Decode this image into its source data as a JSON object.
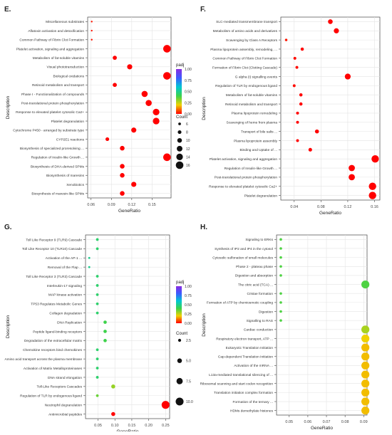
{
  "chart_data": [
    {
      "panel": "E.",
      "type": "scatter",
      "xlabel": "GeneRatio",
      "ylabel": "Description",
      "xlim": [
        0.055,
        0.178
      ],
      "xticks": [
        0.06,
        0.09,
        0.12,
        0.15
      ],
      "xtick_labels": [
        "0.06",
        "0.09",
        "0.12",
        "0.15"
      ],
      "color_legend_title": "padj",
      "color_ticks": [
        "1.00",
        "0.75",
        "0.50",
        "0.25",
        "0.00"
      ],
      "size_legend_title": "Count",
      "size_ticks": [
        6,
        8,
        10,
        12,
        14,
        16
      ],
      "size_domain": [
        4,
        18
      ],
      "categories": [
        "Miscellaneous substrates",
        "Aflatoxin activation and detoxification",
        "Common Pathway of Fibrin Clot Formation",
        "Platelet activation, signaling and aggregation",
        "Metabolism of fat-soluble vitamins",
        "Visual phototransduction",
        "Biological oxidations",
        "Retinoid metabolism and transport",
        "Phase I - Functionalization of compounds",
        "Post-translational protein phosphorylation",
        "Response to elevated platelet cytosolic Ca2+",
        "Platelet degranulation",
        "Cytochrome P450 - arranged by substrate type",
        "CYP2E1 reactions",
        "Biosynthesis of specialized proresolving ...",
        "Regulation of Insulin-like Growth ...",
        "Biosynthesis of DHA-derived SPMs",
        "Biosynthesis of maresins",
        "Xenobiotics",
        "Biosynthesis of maresin-like SPMs"
      ],
      "x": [
        0.061,
        0.061,
        0.061,
        0.172,
        0.095,
        0.117,
        0.172,
        0.095,
        0.139,
        0.145,
        0.156,
        0.156,
        0.123,
        0.084,
        0.106,
        0.172,
        0.106,
        0.106,
        0.123,
        0.106
      ],
      "count": [
        4,
        4,
        4,
        16,
        9,
        11,
        16,
        9,
        13,
        13,
        14,
        14,
        11,
        8,
        10,
        16,
        10,
        10,
        11,
        10
      ],
      "padj": [
        0.02,
        0.02,
        0.02,
        0.0,
        0.0,
        0.0,
        0.0,
        0.0,
        0.0,
        0.0,
        0.0,
        0.0,
        0.0,
        0.0,
        0.0,
        0.0,
        0.0,
        0.0,
        0.0,
        0.0
      ]
    },
    {
      "panel": "F.",
      "type": "scatter",
      "xlabel": "GeneRatio",
      "ylabel": "Description",
      "xlim": [
        0.02,
        0.168
      ],
      "xticks": [
        0.04,
        0.08,
        0.12,
        0.16
      ],
      "xtick_labels": [
        "0.04",
        "0.08",
        "0.12",
        "0.16"
      ],
      "color_legend_title": "padj",
      "color_ticks": [
        "1.00",
        "0.75",
        "0.50",
        "0.25",
        "0.00"
      ],
      "size_legend_title": "Count",
      "size_ticks": [
        3,
        6,
        9,
        12,
        15,
        18
      ],
      "size_domain": [
        1,
        19
      ],
      "categories": [
        "SLC-mediated transmembrane transport",
        "Metabolism of amino acids and derivatives",
        "Scavenging by Class A Receptors",
        "Plasma lipoprotein assembly, remodeling, ...",
        "Common Pathway of Fibrin Clot Formation",
        "Formation of Fibrin Clot (Clotting Cascade)",
        "G alpha (i) signalling events",
        "Regulation of TLR by endogenous ligand",
        "Metabolism of fat-soluble vitamins",
        "Retinoid metabolism and transport",
        "Plasma lipoprotein remodeling",
        "Scavenging of heme from plasma",
        "Transport of bile salts ...",
        "Plasma lipoprotein assembly",
        "Binding and Uptake of ...",
        "Platelet activation, signaling and aggregation",
        "Regulation of Insulin-like Growth ...",
        "Post-translational protein phosphorylation",
        "Response to elevated platelet cytosolic Ca2+",
        "Platelet degranulation"
      ],
      "x": [
        0.094,
        0.103,
        0.028,
        0.052,
        0.041,
        0.044,
        0.12,
        0.04,
        0.05,
        0.05,
        0.045,
        0.045,
        0.074,
        0.045,
        0.064,
        0.161,
        0.126,
        0.126,
        0.157,
        0.157
      ],
      "count": [
        9,
        10,
        3,
        5,
        4,
        4,
        12,
        4,
        5,
        5,
        4,
        4,
        7,
        4,
        6,
        16,
        13,
        13,
        16,
        16
      ],
      "padj": [
        0.0,
        0.0,
        0.02,
        0.0,
        0.01,
        0.01,
        0.0,
        0.01,
        0.0,
        0.0,
        0.0,
        0.0,
        0.0,
        0.0,
        0.0,
        0.0,
        0.0,
        0.0,
        0.0,
        0.0
      ]
    },
    {
      "panel": "G.",
      "type": "scatter",
      "xlabel": "GeneRatio",
      "ylabel": "Description",
      "xlim": [
        0.013,
        0.262
      ],
      "xticks": [
        0.05,
        0.1,
        0.15,
        0.2,
        0.25
      ],
      "xtick_labels": [
        "0.05",
        "0.10",
        "0.15",
        "0.20",
        "0.25"
      ],
      "color_legend_title": "padj",
      "color_ticks": [
        "1.00",
        "0.75",
        "0.50",
        "0.25",
        "0.00"
      ],
      "size_legend_title": "Count",
      "size_ticks": [
        2.5,
        5.0,
        7.5,
        10.0
      ],
      "size_tick_labels": [
        "2.5",
        "5.0",
        "7.5",
        "10.0"
      ],
      "size_domain": [
        0.5,
        11
      ],
      "categories": [
        "Toll Like Receptor 9 (TLR9) Cascade",
        "Toll Like Receptor 10 (TLR10) Cascade",
        "Activation of the AP-1 ...",
        "Removal of the Flap ...",
        "Toll Like Receptor 3 (TLR3) Cascade",
        "Interleukin-17 signaling",
        "MAP kinase activation",
        "TP53 Regulates Metabolic Genes",
        "Collagen degradation",
        "DNA Replication",
        "Peptide ligand-binding receptors",
        "Degradation of the extracellular matrix",
        "Chemokine receptors bind chemokines",
        "Amino acid transport across the plasma membrane",
        "Activation of Matrix Metalloproteinases",
        "DNA strand elongation",
        "Toll-Like Receptors Cascades",
        "Regulation of TLR by endogenous ligand",
        "Neutrophil degranulation",
        "Antimicrobial peptides"
      ],
      "x": [
        0.048,
        0.048,
        0.024,
        0.024,
        0.048,
        0.048,
        0.048,
        0.048,
        0.048,
        0.071,
        0.071,
        0.071,
        0.048,
        0.048,
        0.048,
        0.048,
        0.095,
        0.048,
        0.25,
        0.095
      ],
      "count": [
        2,
        2,
        1,
        1,
        2,
        2,
        2,
        2,
        2,
        3,
        3,
        3,
        2,
        2,
        2,
        2,
        4,
        2,
        10,
        4
      ],
      "padj": [
        0.45,
        0.45,
        0.5,
        0.5,
        0.45,
        0.45,
        0.45,
        0.45,
        0.45,
        0.4,
        0.4,
        0.4,
        0.45,
        0.45,
        0.45,
        0.45,
        0.3,
        0.35,
        0.0,
        0.0
      ]
    },
    {
      "panel": "H.",
      "type": "scatter",
      "xlabel": "GeneRatio",
      "ylabel": "Description",
      "xlim": [
        0.0432,
        0.0918
      ],
      "xticks": [
        0.05,
        0.06,
        0.07,
        0.08,
        0.09
      ],
      "xtick_labels": [
        "0.05",
        "0.06",
        "0.07",
        "0.08",
        "0.09"
      ],
      "color_legend_title": "padj",
      "color_ticks": [
        "1.00",
        "0.75",
        "0.50",
        "0.25",
        "0.00"
      ],
      "size_legend_title": "Count",
      "size_ticks": [
        1.0,
        1.25,
        1.5,
        1.75,
        2.0
      ],
      "size_tick_labels": [
        "1.00",
        "1.25",
        "1.50",
        "1.75",
        "2.00"
      ],
      "size_domain": [
        0.85,
        2.1
      ],
      "categories": [
        "Signaling to ERKs",
        "Synthesis of IP2 and IP4 in the cytosol",
        "Cytosolic sulfonation of small molecules",
        "Phase 2 - plateau phase",
        "Digestion and absorption",
        "The citric acid (TCA) ...",
        "Cristae formation",
        "Formation of ATP by chemiosmotic coupling",
        "Digestion",
        "Signalling to RAS",
        "Cardiac conduction",
        "Respiratory electron transport, ATP ...",
        "Eukaryotic Translation Initiation",
        "Cap-dependent Translation Initiation",
        "Activation of the mRNA ...",
        "L13a-mediated translational silencing of ...",
        "Ribosomal scanning and start codon recognition",
        "Translation initiation complex formation",
        "Formation of the ternary ...",
        "HDMs demethylate histones"
      ],
      "x": [
        0.0455,
        0.0455,
        0.0455,
        0.0455,
        0.0455,
        0.0909,
        0.0455,
        0.0455,
        0.0455,
        0.0455,
        0.0909,
        0.0909,
        0.0909,
        0.0909,
        0.0909,
        0.0909,
        0.0909,
        0.0909,
        0.0909,
        0.0909
      ],
      "count": [
        1,
        1,
        1,
        1,
        1,
        2,
        1,
        1,
        1,
        1,
        2,
        2,
        2,
        2,
        2,
        2,
        2,
        2,
        2,
        2
      ],
      "padj": [
        0.38,
        0.38,
        0.38,
        0.38,
        0.38,
        0.38,
        0.38,
        0.38,
        0.38,
        0.38,
        0.28,
        0.2,
        0.18,
        0.18,
        0.18,
        0.18,
        0.18,
        0.18,
        0.18,
        0.18
      ]
    }
  ]
}
